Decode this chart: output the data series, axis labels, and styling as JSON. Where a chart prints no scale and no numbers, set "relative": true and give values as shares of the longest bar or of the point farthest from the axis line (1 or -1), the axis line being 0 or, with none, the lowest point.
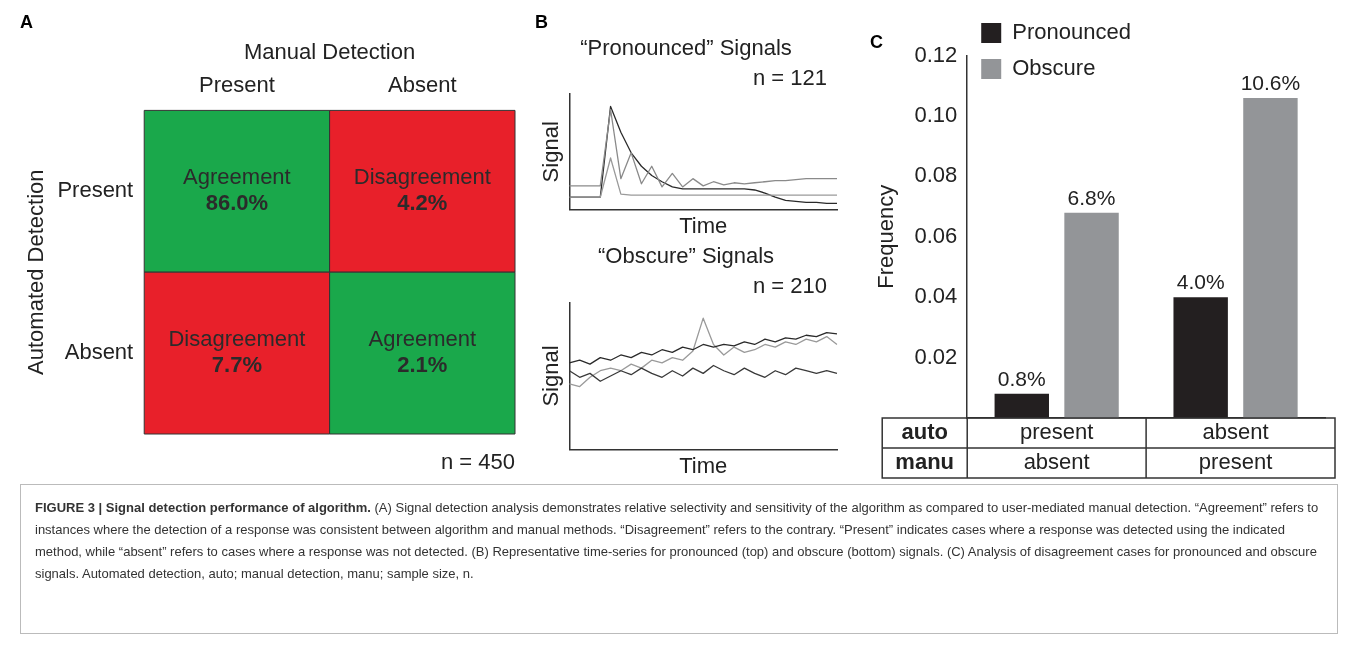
{
  "chart_data": [
    {
      "type": "heatmap",
      "title": "A",
      "xlabel": "Manual Detection",
      "ylabel": "Automated Detection",
      "categories": [
        "Present",
        "Absent"
      ],
      "y_categories": [
        "Present",
        "Absent"
      ],
      "cells": [
        [
          86.0,
          4.2
        ],
        [
          7.7,
          2.1
        ]
      ],
      "cell_labels": [
        [
          "86.0%",
          "4.2%"
        ],
        [
          "7.7%",
          "2.1%"
        ]
      ],
      "colors": [
        "#1aa84b",
        "#e8202a",
        "#e8202a",
        "#1aa84b"
      ],
      "annotations": [
        "n = 450",
        "Agreement",
        "Disagreement",
        "Disagreement",
        "Agreement",
        "FIGURE 3 | Signal detection performance of algorithm.",
        "(A) Signal detection analysis demonstrates relative selectivity and sensitivity of the algorithm as compared to user-mediated manual detection. “Agreement” refers to instances where the detection of a response was consistent between algorithm and manual methods. “Disagreement” refers to the contrary. “Present” indicates cases where a response was detected using the indicated method, while “absent” refers to cases where a response was not detected. (B) Representative time-series for pronounced (top) and obscure (bottom) signals. (C) Analysis of disagreement cases for pronounced and obscure signals. Automated detection, auto; manual detection, manu; sample size, n."
      ]
    },
    {
      "type": "line",
      "title": "B",
      "subtitle": "“Pronounced” Signals",
      "xlabel": "Time",
      "ylabel": "Signal",
      "relative": true,
      "marker": "none",
      "annotations": [
        "n = 121"
      ],
      "categories": [
        null,
        null,
        null,
        null,
        null,
        null,
        null,
        null,
        null,
        null,
        null,
        null,
        null,
        null,
        null,
        null,
        null,
        null,
        null,
        null,
        null,
        null,
        null,
        null,
        null,
        null,
        null
      ],
      "series": [
        {
          "color": "#8a8a8a",
          "values": [
            0.23,
            0.23,
            0.23,
            0.23,
            0.97,
            0.3,
            0.55,
            0.25,
            0.42,
            0.22,
            0.35,
            0.22,
            0.3,
            0.23,
            0.27,
            0.24,
            0.26,
            0.25,
            0.26,
            0.27,
            0.28,
            0.28,
            0.29,
            0.3,
            0.3,
            0.3,
            0.3
          ]
        },
        {
          "color": "#9a9a9a",
          "values": [
            0.12,
            0.12,
            0.12,
            0.12,
            0.5,
            0.15,
            0.14,
            0.14,
            0.14,
            0.14,
            0.14,
            0.14,
            0.14,
            0.14,
            0.14,
            0.14,
            0.14,
            0.14,
            0.14,
            0.14,
            0.14,
            0.14,
            0.14,
            0.14,
            0.14,
            0.14,
            0.14
          ]
        },
        {
          "color": "#2a2a2a",
          "values": [
            0.12,
            0.12,
            0.12,
            0.12,
            1.0,
            0.75,
            0.55,
            0.42,
            0.33,
            0.27,
            0.22,
            0.2,
            0.2,
            0.2,
            0.2,
            0.2,
            0.2,
            0.2,
            0.19,
            0.16,
            0.12,
            0.09,
            0.08,
            0.07,
            0.07,
            0.06,
            0.06
          ]
        }
      ]
    },
    {
      "type": "line",
      "subtitle": "“Obscure” Signals",
      "xlabel": "Time",
      "ylabel": "Signal",
      "relative": true,
      "marker": "none",
      "annotations": [
        "n = 210"
      ],
      "categories": [
        null,
        null,
        null,
        null,
        null,
        null,
        null,
        null,
        null,
        null,
        null,
        null,
        null,
        null,
        null,
        null,
        null,
        null,
        null,
        null,
        null,
        null,
        null,
        null,
        null,
        null,
        null
      ],
      "series": [
        {
          "color": "#2a2a2a",
          "values": [
            0.66,
            0.68,
            0.65,
            0.7,
            0.68,
            0.72,
            0.7,
            0.74,
            0.72,
            0.76,
            0.74,
            0.78,
            0.76,
            0.8,
            0.78,
            0.8,
            0.79,
            0.82,
            0.8,
            0.84,
            0.82,
            0.85,
            0.84,
            0.87,
            0.86,
            0.89,
            0.88
          ]
        },
        {
          "color": "#3a3a3a",
          "values": [
            0.6,
            0.55,
            0.58,
            0.52,
            0.56,
            0.6,
            0.57,
            0.62,
            0.58,
            0.55,
            0.6,
            0.56,
            0.62,
            0.58,
            0.64,
            0.6,
            0.57,
            0.62,
            0.58,
            0.55,
            0.6,
            0.57,
            0.62,
            0.6,
            0.58,
            0.6,
            0.58
          ]
        },
        {
          "color": "#9a9a9a",
          "values": [
            0.5,
            0.48,
            0.55,
            0.6,
            0.62,
            0.6,
            0.65,
            0.62,
            0.68,
            0.66,
            0.7,
            0.68,
            0.75,
            1.0,
            0.8,
            0.72,
            0.78,
            0.74,
            0.76,
            0.8,
            0.78,
            0.82,
            0.8,
            0.84,
            0.82,
            0.86,
            0.8
          ]
        }
      ]
    },
    {
      "type": "bar",
      "title": "C",
      "ylabel": "Frequency",
      "categories": [
        "present\nabsent",
        "absent\npresent"
      ],
      "annotations": [
        "auto",
        "manu"
      ],
      "ylim": [
        0,
        0.12
      ],
      "yticks": [
        0.02,
        0.04,
        0.06,
        0.08,
        {
          "value": 0.1,
          "label": "0.10"
        },
        0.12
      ],
      "legend": "top left",
      "grid": false,
      "series": [
        {
          "name": "Pronounced",
          "color": "#231f20",
          "values": [
            0.008,
            0.04
          ],
          "value_labels": [
            "0.8%",
            "4.0%"
          ]
        },
        {
          "name": "Obscure",
          "color": "#939598",
          "values": [
            0.068,
            0.106
          ],
          "value_labels": [
            "6.8%",
            "10.6%"
          ]
        }
      ]
    }
  ]
}
